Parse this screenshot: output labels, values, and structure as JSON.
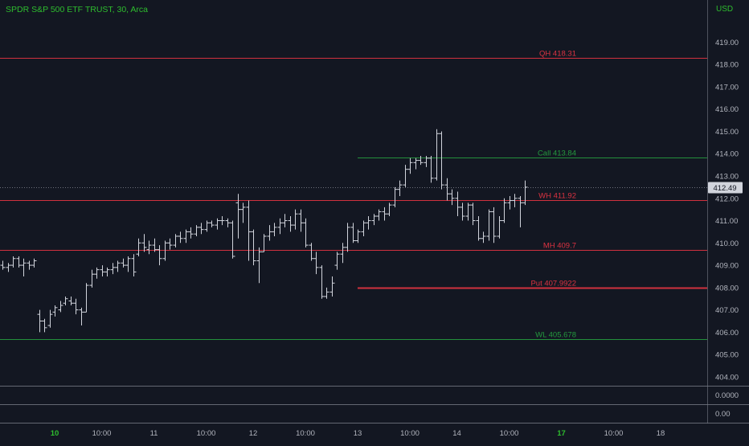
{
  "header": {
    "title": "SPDR S&P 500 ETF TRUST, 30, Arca",
    "currency": "USD"
  },
  "price_label": {
    "value": "412.49",
    "price": 412.49
  },
  "indicator_panes": [
    "0.0000",
    "0.00"
  ],
  "colors": {
    "background": "#131722",
    "bars": "#d1d4dc",
    "resistance": "#f23645",
    "support": "#26a641",
    "axis_text": "#b2b5be",
    "title": "#2ebd2e",
    "separator": "#787b86"
  },
  "chart_data": {
    "type": "ohlc",
    "title": "SPDR S&P 500 ETF TRUST, 30, Arca",
    "ylabel": "USD",
    "ylim": [
      403.6,
      420.6
    ],
    "y_ticks": [
      "404.00",
      "405.00",
      "406.00",
      "407.00",
      "408.00",
      "409.00",
      "410.00",
      "411.00",
      "412.00",
      "413.00",
      "414.00",
      "415.00",
      "416.00",
      "417.00",
      "418.00",
      "419.00"
    ],
    "x_ticks": [
      {
        "label": "10",
        "bar": 10,
        "bold": true
      },
      {
        "label": "10:00",
        "bar": 19,
        "bold": false
      },
      {
        "label": "11",
        "bar": 29,
        "bold": false
      },
      {
        "label": "10:00",
        "bar": 39,
        "bold": false
      },
      {
        "label": "12",
        "bar": 48,
        "bold": false
      },
      {
        "label": "10:00",
        "bar": 58,
        "bold": false
      },
      {
        "label": "13",
        "bar": 68,
        "bold": false
      },
      {
        "label": "10:00",
        "bar": 78,
        "bold": false
      },
      {
        "label": "14",
        "bar": 87,
        "bold": false
      },
      {
        "label": "10:00",
        "bar": 97,
        "bold": false
      },
      {
        "label": "17",
        "bar": 107,
        "bold": true
      },
      {
        "label": "10:00",
        "bar": 117,
        "bold": false
      },
      {
        "label": "18",
        "bar": 126,
        "bold": false
      }
    ],
    "levels": [
      {
        "name": "QH",
        "label": "QH 418.31",
        "value": 418.31,
        "color": "#f23645",
        "from_bar": 0,
        "width": 1
      },
      {
        "name": "Call",
        "label": "Call 413.84",
        "value": 413.84,
        "color": "#26a641",
        "from_bar": 68,
        "width": 1
      },
      {
        "name": "WH",
        "label": "WH 411.92",
        "value": 411.92,
        "color": "#f23645",
        "from_bar": 0,
        "width": 1
      },
      {
        "name": "MH",
        "label": "MH 409.7",
        "value": 409.7,
        "color": "#f23645",
        "from_bar": 0,
        "width": 1
      },
      {
        "name": "Put",
        "label": "Put 407.9922",
        "value": 407.9922,
        "color": "#f23645",
        "from_bar": 68,
        "width": 2
      },
      {
        "name": "WL",
        "label": "WL 405.678",
        "value": 405.678,
        "color": "#26a641",
        "from_bar": 0,
        "width": 1
      }
    ],
    "bars": [
      [
        409.0,
        409.2,
        408.8,
        408.9
      ],
      [
        408.9,
        409.1,
        408.7,
        409.0
      ],
      [
        409.0,
        409.4,
        408.9,
        409.3
      ],
      [
        409.3,
        409.4,
        408.9,
        409.0
      ],
      [
        409.0,
        409.3,
        408.5,
        409.1
      ],
      [
        409.1,
        409.2,
        408.8,
        409.0
      ],
      [
        409.0,
        409.3,
        408.9,
        409.2
      ],
      [
        406.8,
        407.0,
        406.0,
        406.5
      ],
      [
        406.5,
        406.6,
        406.0,
        406.2
      ],
      [
        406.3,
        407.0,
        406.2,
        406.8
      ],
      [
        406.9,
        407.2,
        406.7,
        407.1
      ],
      [
        407.0,
        407.4,
        406.9,
        407.2
      ],
      [
        407.3,
        407.6,
        407.2,
        407.5
      ],
      [
        407.4,
        407.6,
        407.2,
        407.3
      ],
      [
        407.3,
        407.5,
        406.8,
        407.0
      ],
      [
        407.0,
        407.1,
        406.3,
        406.9
      ],
      [
        406.9,
        408.2,
        406.9,
        408.1
      ],
      [
        408.1,
        408.8,
        408.0,
        408.6
      ],
      [
        408.6,
        408.9,
        408.4,
        408.8
      ],
      [
        408.8,
        409.0,
        408.5,
        408.7
      ],
      [
        408.7,
        408.9,
        408.5,
        408.8
      ],
      [
        408.8,
        409.1,
        408.6,
        408.9
      ],
      [
        408.9,
        409.2,
        408.7,
        409.1
      ],
      [
        409.1,
        409.3,
        408.9,
        409.0
      ],
      [
        409.0,
        409.4,
        408.7,
        409.3
      ],
      [
        409.3,
        409.5,
        408.5,
        408.7
      ],
      [
        409.5,
        410.2,
        409.4,
        410.0
      ],
      [
        410.0,
        410.4,
        409.6,
        409.8
      ],
      [
        409.7,
        410.1,
        409.5,
        409.9
      ],
      [
        409.9,
        410.2,
        409.6,
        409.7
      ],
      [
        409.7,
        409.9,
        409.0,
        409.3
      ],
      [
        409.3,
        410.1,
        409.2,
        410.0
      ],
      [
        410.0,
        410.2,
        409.7,
        409.9
      ],
      [
        409.9,
        410.4,
        409.8,
        410.3
      ],
      [
        410.3,
        410.5,
        410.0,
        410.2
      ],
      [
        410.2,
        410.6,
        410.0,
        410.5
      ],
      [
        410.5,
        410.7,
        410.2,
        410.4
      ],
      [
        410.4,
        410.8,
        410.3,
        410.7
      ],
      [
        410.7,
        410.9,
        410.4,
        410.6
      ],
      [
        410.6,
        411.0,
        410.5,
        410.9
      ],
      [
        410.9,
        411.0,
        410.7,
        410.8
      ],
      [
        410.8,
        411.1,
        410.6,
        411.0
      ],
      [
        411.0,
        411.2,
        410.8,
        411.0
      ],
      [
        411.0,
        411.1,
        410.7,
        410.9
      ],
      [
        410.9,
        411.0,
        409.3,
        409.4
      ],
      [
        411.8,
        412.2,
        410.2,
        411.5
      ],
      [
        411.5,
        411.8,
        410.9,
        411.6
      ],
      [
        411.6,
        411.9,
        409.2,
        410.5
      ],
      [
        410.5,
        410.6,
        409.0,
        409.2
      ],
      [
        409.2,
        409.8,
        408.2,
        409.6
      ],
      [
        409.6,
        410.4,
        409.6,
        410.3
      ],
      [
        410.3,
        410.8,
        410.1,
        410.5
      ],
      [
        410.5,
        410.9,
        410.3,
        410.7
      ],
      [
        410.7,
        411.1,
        410.4,
        410.9
      ],
      [
        410.9,
        411.3,
        410.7,
        411.0
      ],
      [
        411.0,
        411.2,
        410.5,
        410.8
      ],
      [
        410.8,
        411.5,
        410.6,
        411.3
      ],
      [
        411.3,
        411.5,
        410.5,
        410.9
      ],
      [
        410.9,
        411.1,
        409.8,
        409.9
      ],
      [
        409.9,
        410.0,
        409.2,
        409.3
      ],
      [
        409.3,
        409.6,
        408.6,
        408.9
      ],
      [
        408.9,
        409.0,
        407.5,
        407.6
      ],
      [
        407.6,
        408.0,
        407.5,
        407.8
      ],
      [
        407.8,
        408.5,
        407.6,
        408.2
      ],
      [
        409.0,
        409.6,
        408.8,
        409.5
      ],
      [
        409.5,
        410.0,
        409.1,
        409.8
      ],
      [
        409.8,
        410.9,
        409.6,
        410.7
      ],
      [
        410.7,
        410.9,
        410.0,
        410.1
      ],
      [
        410.1,
        410.6,
        410.0,
        410.5
      ],
      [
        410.5,
        411.0,
        410.3,
        410.9
      ],
      [
        410.9,
        411.2,
        410.6,
        411.0
      ],
      [
        411.0,
        411.3,
        410.8,
        411.2
      ],
      [
        411.2,
        411.5,
        411.0,
        411.4
      ],
      [
        411.4,
        411.6,
        411.0,
        411.3
      ],
      [
        411.3,
        411.8,
        411.2,
        411.7
      ],
      [
        411.7,
        412.5,
        411.6,
        412.4
      ],
      [
        412.4,
        412.8,
        412.1,
        412.6
      ],
      [
        412.6,
        413.5,
        412.5,
        413.3
      ],
      [
        413.3,
        413.8,
        413.1,
        413.6
      ],
      [
        413.6,
        413.8,
        413.3,
        413.7
      ],
      [
        413.7,
        413.9,
        413.5,
        413.6
      ],
      [
        413.6,
        413.9,
        413.4,
        413.8
      ],
      [
        413.8,
        413.9,
        412.7,
        412.9
      ],
      [
        412.9,
        415.1,
        412.8,
        414.9
      ],
      [
        414.9,
        415.0,
        412.4,
        412.6
      ],
      [
        412.6,
        412.9,
        411.9,
        412.2
      ],
      [
        412.2,
        412.4,
        411.7,
        412.0
      ],
      [
        412.0,
        412.3,
        411.2,
        411.6
      ],
      [
        411.6,
        411.8,
        411.0,
        411.2
      ],
      [
        411.2,
        411.8,
        411.0,
        411.7
      ],
      [
        411.7,
        411.8,
        410.8,
        411.0
      ],
      [
        411.0,
        411.2,
        410.1,
        410.2
      ],
      [
        410.2,
        410.5,
        410.0,
        410.3
      ],
      [
        410.3,
        411.5,
        410.1,
        411.4
      ],
      [
        411.4,
        411.6,
        410.0,
        410.3
      ],
      [
        410.3,
        411.2,
        410.2,
        411.0
      ],
      [
        411.0,
        412.0,
        410.9,
        411.8
      ],
      [
        411.8,
        412.1,
        411.5,
        411.9
      ],
      [
        411.9,
        412.2,
        411.6,
        412.0
      ],
      [
        412.0,
        412.1,
        410.7,
        411.8
      ],
      [
        411.8,
        412.8,
        411.7,
        412.5
      ]
    ]
  }
}
